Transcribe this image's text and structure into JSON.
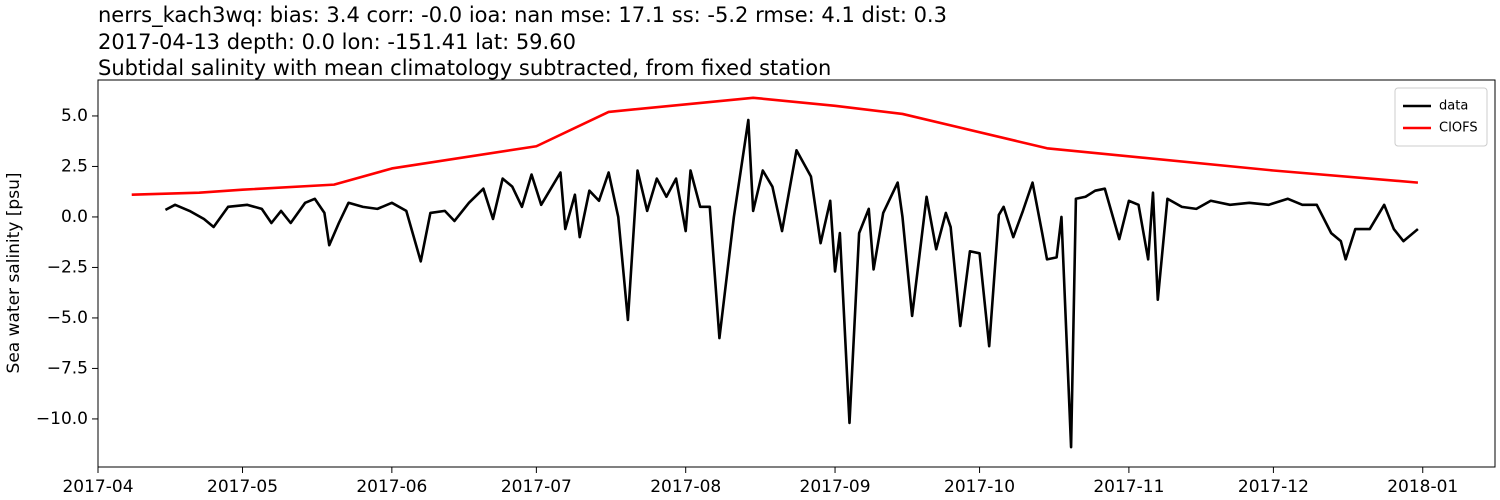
{
  "chart_data": {
    "type": "line",
    "title_lines": [
      "nerrs_kach3wq: bias: 3.4  corr: -0.0  ioa: nan  mse: 17.1  ss: -5.2  rmse: 4.1  dist: 0.3",
      "2017-04-13 depth: 0.0 lon: -151.41 lat: 59.60",
      "Subtidal salinity with mean climatology subtracted, from fixed station"
    ],
    "ylabel": "Sea water salinity [psu]",
    "legend": "upper right",
    "xlim": [
      "2017-04",
      "2018-01-16"
    ],
    "xticks": [
      "2017-04",
      "2017-05",
      "2017-06",
      "2017-07",
      "2017-08",
      "2017-09",
      "2017-10",
      "2017-11",
      "2017-12",
      "2018-01"
    ],
    "ylim": [
      -12.38,
      6.78
    ],
    "yticks": [
      {
        "value": 5,
        "label": "5.0"
      },
      {
        "value": 2.5,
        "label": "2.5"
      },
      {
        "value": 0,
        "label": "0.0"
      },
      {
        "value": -2.5,
        "label": "−2.5"
      },
      {
        "value": -5,
        "label": "−5.0"
      },
      {
        "value": -7.5,
        "label": "−7.5"
      },
      {
        "value": -10,
        "label": "−10.0"
      }
    ],
    "series": [
      {
        "name": "data",
        "color": "#000000",
        "x": [
          "2017-04-15",
          "2017-04-17",
          "2017-04-20",
          "2017-04-23",
          "2017-04-25",
          "2017-04-28",
          "2017-05-02",
          "2017-05-05",
          "2017-05-07",
          "2017-05-09",
          "2017-05-11",
          "2017-05-14",
          "2017-05-16",
          "2017-05-18",
          "2017-05-19",
          "2017-05-21",
          "2017-05-23",
          "2017-05-26",
          "2017-05-29",
          "2017-06-01",
          "2017-06-04",
          "2017-06-07",
          "2017-06-09",
          "2017-06-12",
          "2017-06-14",
          "2017-06-17",
          "2017-06-20",
          "2017-06-22",
          "2017-06-24",
          "2017-06-26",
          "2017-06-28",
          "2017-06-30",
          "2017-07-02",
          "2017-07-04",
          "2017-07-06",
          "2017-07-07",
          "2017-07-09",
          "2017-07-10",
          "2017-07-12",
          "2017-07-14",
          "2017-07-16",
          "2017-07-18",
          "2017-07-20",
          "2017-07-22",
          "2017-07-24",
          "2017-07-26",
          "2017-07-28",
          "2017-07-30",
          "2017-08-01",
          "2017-08-02",
          "2017-08-04",
          "2017-08-06",
          "2017-08-08",
          "2017-08-11",
          "2017-08-14",
          "2017-08-15",
          "2017-08-17",
          "2017-08-19",
          "2017-08-21",
          "2017-08-24",
          "2017-08-27",
          "2017-08-29",
          "2017-08-31",
          "2017-09-01",
          "2017-09-02",
          "2017-09-04",
          "2017-09-06",
          "2017-09-08",
          "2017-09-09",
          "2017-09-11",
          "2017-09-14",
          "2017-09-15",
          "2017-09-17",
          "2017-09-20",
          "2017-09-22",
          "2017-09-24",
          "2017-09-25",
          "2017-09-27",
          "2017-09-29",
          "2017-10-01",
          "2017-10-03",
          "2017-10-05",
          "2017-10-06",
          "2017-10-08",
          "2017-10-10",
          "2017-10-12",
          "2017-10-14",
          "2017-10-15",
          "2017-10-17",
          "2017-10-18",
          "2017-10-20",
          "2017-10-21",
          "2017-10-23",
          "2017-10-25",
          "2017-10-27",
          "2017-10-30",
          "2017-11-01",
          "2017-11-03",
          "2017-11-05",
          "2017-11-06",
          "2017-11-07",
          "2017-11-09",
          "2017-11-12",
          "2017-11-15",
          "2017-11-18",
          "2017-11-22",
          "2017-11-26",
          "2017-11-30",
          "2017-12-04",
          "2017-12-07",
          "2017-12-10",
          "2017-12-13",
          "2017-12-15",
          "2017-12-16",
          "2017-12-18",
          "2017-12-21",
          "2017-12-24",
          "2017-12-26",
          "2017-12-28",
          "2017-12-31"
        ],
        "values": [
          0.35,
          0.6,
          0.3,
          -0.1,
          -0.5,
          0.5,
          0.6,
          0.4,
          -0.3,
          0.3,
          -0.3,
          0.7,
          0.9,
          0.2,
          -1.4,
          -0.3,
          0.7,
          0.5,
          0.4,
          0.7,
          0.3,
          -2.2,
          0.2,
          0.3,
          -0.2,
          0.7,
          1.4,
          -0.1,
          1.9,
          1.5,
          0.5,
          2.1,
          0.6,
          1.4,
          2.2,
          -0.6,
          1.1,
          -1.0,
          1.3,
          0.8,
          2.2,
          0.0,
          -5.1,
          2.3,
          0.3,
          1.9,
          1.0,
          1.9,
          -0.7,
          2.3,
          0.5,
          0.5,
          -6.0,
          0.0,
          4.8,
          0.3,
          2.3,
          1.5,
          -0.7,
          3.3,
          2.0,
          -1.3,
          0.8,
          -2.7,
          -0.8,
          -10.2,
          -0.8,
          0.4,
          -2.6,
          0.2,
          1.7,
          0.0,
          -4.9,
          1.0,
          -1.6,
          0.2,
          -0.5,
          -5.4,
          -1.7,
          -1.8,
          -6.4,
          0.1,
          0.5,
          -1.0,
          0.3,
          1.7,
          -0.8,
          -2.1,
          -2.0,
          0.0,
          -11.4,
          0.9,
          1.0,
          1.3,
          1.4,
          -1.1,
          0.8,
          0.6,
          -2.1,
          1.2,
          -4.1,
          0.9,
          0.5,
          0.4,
          0.8,
          0.6,
          0.7,
          0.6,
          0.9,
          0.6,
          0.6,
          -0.8,
          -1.2,
          -2.1,
          -0.6,
          -0.6,
          0.6,
          -0.6,
          -1.2,
          -0.6
        ]
      },
      {
        "name": "CIOFS",
        "color": "#ff0000",
        "x": [
          "2017-04-08",
          "2017-04-22",
          "2017-05-01",
          "2017-05-20",
          "2017-06-01",
          "2017-07-01",
          "2017-07-16",
          "2017-08-15",
          "2017-09-01",
          "2017-09-15",
          "2017-10-15",
          "2017-12-01",
          "2017-12-31"
        ],
        "values": [
          1.1,
          1.2,
          1.35,
          1.6,
          2.4,
          3.5,
          5.2,
          5.9,
          5.5,
          5.1,
          3.4,
          2.3,
          1.7
        ]
      }
    ]
  }
}
